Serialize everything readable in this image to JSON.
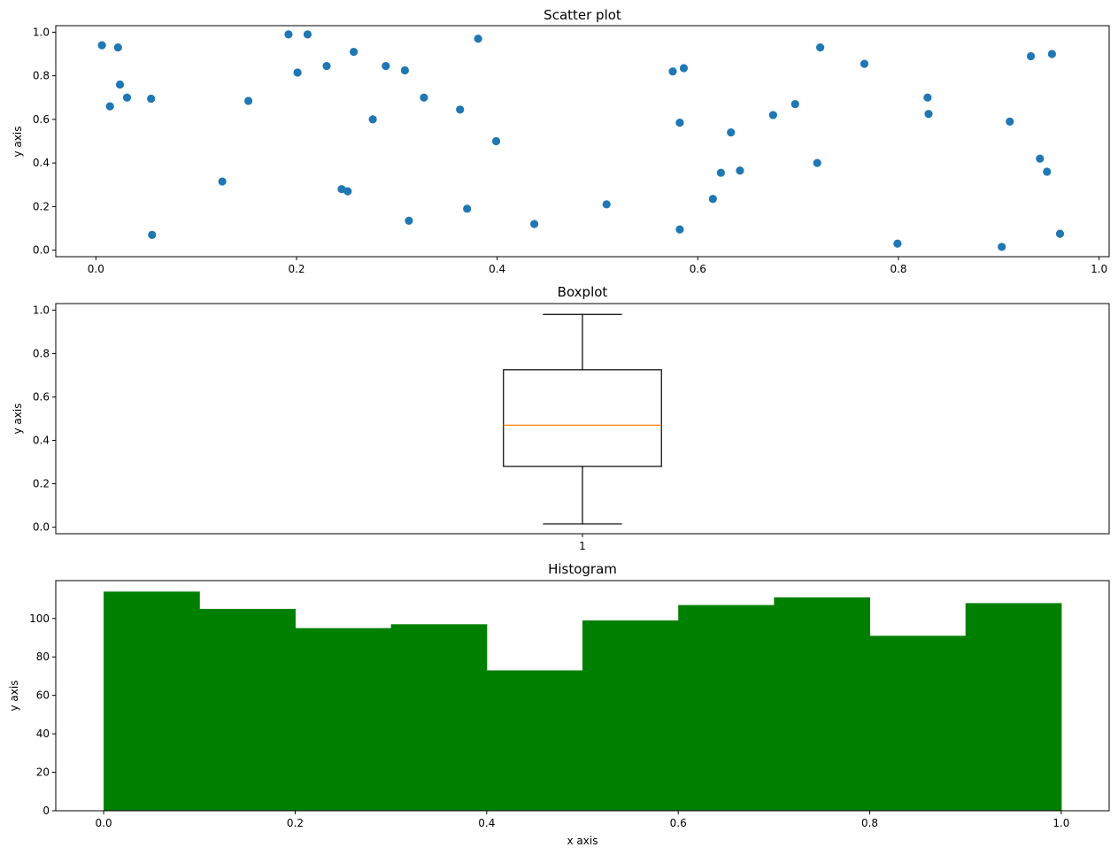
{
  "chart_data": [
    {
      "type": "scatter",
      "title": "Scatter plot",
      "xlabel": "",
      "ylabel": "y axis",
      "xlim": [
        -0.04,
        1.01
      ],
      "ylim": [
        -0.03,
        1.03
      ],
      "xticks": [
        "0.0",
        "0.2",
        "0.4",
        "0.6",
        "0.8",
        "1.0"
      ],
      "yticks": [
        "0.0",
        "0.2",
        "0.4",
        "0.6",
        "0.8",
        "1.0"
      ],
      "color": "#1f77b4",
      "points": [
        {
          "x": 0.006,
          "y": 0.94
        },
        {
          "x": 0.014,
          "y": 0.66
        },
        {
          "x": 0.022,
          "y": 0.93
        },
        {
          "x": 0.024,
          "y": 0.76
        },
        {
          "x": 0.031,
          "y": 0.7
        },
        {
          "x": 0.055,
          "y": 0.695
        },
        {
          "x": 0.056,
          "y": 0.07
        },
        {
          "x": 0.126,
          "y": 0.315
        },
        {
          "x": 0.152,
          "y": 0.685
        },
        {
          "x": 0.192,
          "y": 0.99
        },
        {
          "x": 0.201,
          "y": 0.815
        },
        {
          "x": 0.211,
          "y": 0.99
        },
        {
          "x": 0.23,
          "y": 0.845
        },
        {
          "x": 0.245,
          "y": 0.28
        },
        {
          "x": 0.251,
          "y": 0.27
        },
        {
          "x": 0.257,
          "y": 0.91
        },
        {
          "x": 0.276,
          "y": 0.6
        },
        {
          "x": 0.289,
          "y": 0.845
        },
        {
          "x": 0.308,
          "y": 0.825
        },
        {
          "x": 0.312,
          "y": 0.135
        },
        {
          "x": 0.327,
          "y": 0.7
        },
        {
          "x": 0.363,
          "y": 0.645
        },
        {
          "x": 0.37,
          "y": 0.19
        },
        {
          "x": 0.381,
          "y": 0.97
        },
        {
          "x": 0.399,
          "y": 0.5
        },
        {
          "x": 0.437,
          "y": 0.12
        },
        {
          "x": 0.509,
          "y": 0.21
        },
        {
          "x": 0.575,
          "y": 0.82
        },
        {
          "x": 0.582,
          "y": 0.585
        },
        {
          "x": 0.582,
          "y": 0.095
        },
        {
          "x": 0.586,
          "y": 0.835
        },
        {
          "x": 0.615,
          "y": 0.235
        },
        {
          "x": 0.623,
          "y": 0.355
        },
        {
          "x": 0.633,
          "y": 0.54
        },
        {
          "x": 0.642,
          "y": 0.365
        },
        {
          "x": 0.675,
          "y": 0.62
        },
        {
          "x": 0.697,
          "y": 0.67
        },
        {
          "x": 0.719,
          "y": 0.4
        },
        {
          "x": 0.722,
          "y": 0.93
        },
        {
          "x": 0.766,
          "y": 0.855
        },
        {
          "x": 0.799,
          "y": 0.03
        },
        {
          "x": 0.829,
          "y": 0.7
        },
        {
          "x": 0.83,
          "y": 0.625
        },
        {
          "x": 0.903,
          "y": 0.015
        },
        {
          "x": 0.911,
          "y": 0.59
        },
        {
          "x": 0.932,
          "y": 0.89
        },
        {
          "x": 0.941,
          "y": 0.42
        },
        {
          "x": 0.948,
          "y": 0.36
        },
        {
          "x": 0.953,
          "y": 0.9
        },
        {
          "x": 0.961,
          "y": 0.075
        }
      ]
    },
    {
      "type": "boxplot",
      "title": "Boxplot",
      "xlabel": "",
      "ylabel": "y axis",
      "ylim": [
        -0.03,
        1.03
      ],
      "yticks": [
        "0.0",
        "0.2",
        "0.4",
        "0.6",
        "0.8",
        "1.0"
      ],
      "categories": [
        "1"
      ],
      "box": {
        "whisker_low": 0.015,
        "q1": 0.28,
        "median": 0.47,
        "q3": 0.725,
        "whisker_high": 0.98
      },
      "median_color": "#ff7f0e",
      "line_color": "#000000"
    },
    {
      "type": "bar",
      "subtype": "histogram",
      "title": "Histogram",
      "xlabel": "x axis",
      "ylabel": "y axis",
      "xlim": [
        -0.05,
        1.05
      ],
      "ylim": [
        0,
        119.7
      ],
      "xticks": [
        "0.0",
        "0.2",
        "0.4",
        "0.6",
        "0.8",
        "1.0"
      ],
      "yticks": [
        "0",
        "20",
        "40",
        "60",
        "80",
        "100"
      ],
      "color": "#008000",
      "bin_edges": [
        0.0,
        0.1,
        0.2,
        0.3,
        0.4,
        0.5,
        0.6,
        0.7,
        0.8,
        0.9,
        1.0
      ],
      "values": [
        114,
        105,
        95,
        97,
        73,
        99,
        107,
        111,
        91,
        108
      ]
    }
  ]
}
